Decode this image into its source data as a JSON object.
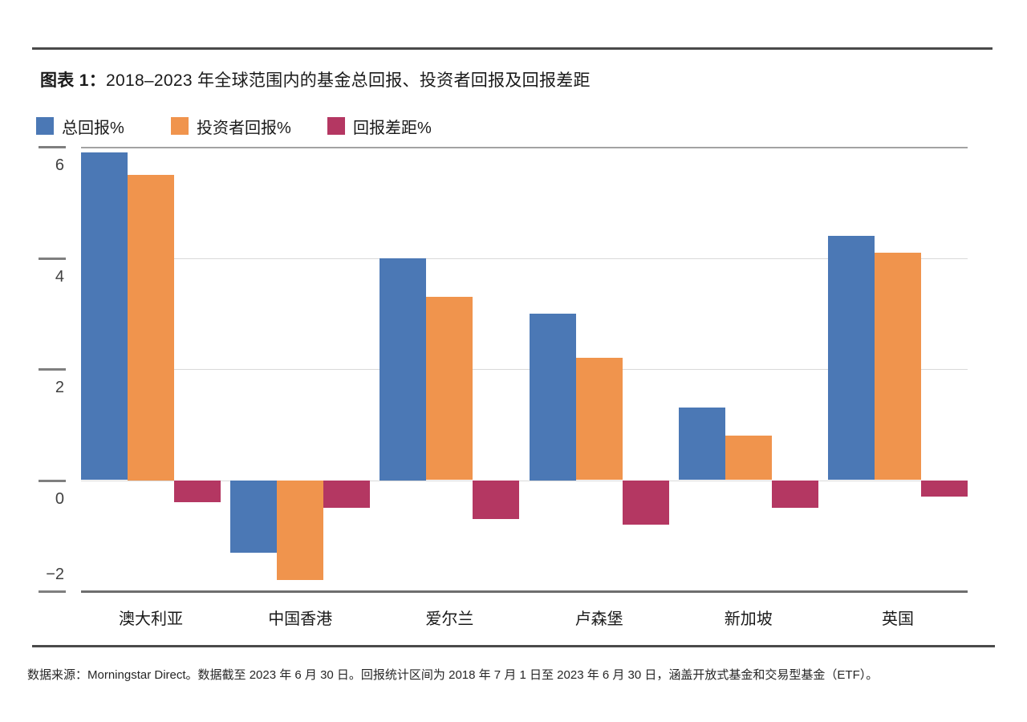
{
  "title": {
    "prefix": "图表 1：",
    "text": "2018–2023 年全球范围内的基金总回报、投资者回报及回报差距"
  },
  "footer": {
    "text": "数据来源：Morningstar Direct。数据截至 2023 年 6 月 30 日。回报统计区间为 2018 年 7 月 1 日至 2023 年 6 月 30 日，涵盖开放式基金和交易型基金（ETF）。"
  },
  "colors": {
    "total_return": "#4b78b5",
    "investor_return": "#f0944d",
    "return_gap": "#b43762",
    "rule": "#4a4a4a",
    "grid_light": "#d9d9d9",
    "grid_top": "#a3a3a3",
    "axis_bottom": "#6e6e6e"
  },
  "chart_data": {
    "type": "bar",
    "title": "2018–2023 年全球范围内的基金总回报、投资者回报及回报差距",
    "categories": [
      "澳大利亚",
      "中国香港",
      "爱尔兰",
      "卢森堡",
      "新加坡",
      "英国"
    ],
    "category_ids": [
      "australia",
      "hong-kong",
      "ireland",
      "luxembourg",
      "singapore",
      "uk"
    ],
    "series": [
      {
        "id": "total-return",
        "name": "总回报%",
        "color": "#4b78b5",
        "values": [
          5.9,
          -1.3,
          4.0,
          3.0,
          1.3,
          4.4
        ]
      },
      {
        "id": "investor-return",
        "name": "投资者回报%",
        "color": "#f0944d",
        "values": [
          5.5,
          -1.8,
          3.3,
          2.2,
          0.8,
          4.1
        ]
      },
      {
        "id": "return-gap",
        "name": "回报差距%",
        "color": "#b43762",
        "values": [
          -0.4,
          -0.5,
          -0.7,
          -0.8,
          -0.5,
          -0.3
        ]
      }
    ],
    "yticks": [
      {
        "label": "6",
        "value": 6
      },
      {
        "label": "4",
        "value": 4
      },
      {
        "label": "2",
        "value": 2
      },
      {
        "label": "0",
        "value": 0
      },
      {
        "label": "−2",
        "value": -2
      }
    ],
    "ylim": [
      -2,
      6
    ],
    "xlabel": "",
    "ylabel": "",
    "grid": true,
    "legend_position": "top-left"
  }
}
